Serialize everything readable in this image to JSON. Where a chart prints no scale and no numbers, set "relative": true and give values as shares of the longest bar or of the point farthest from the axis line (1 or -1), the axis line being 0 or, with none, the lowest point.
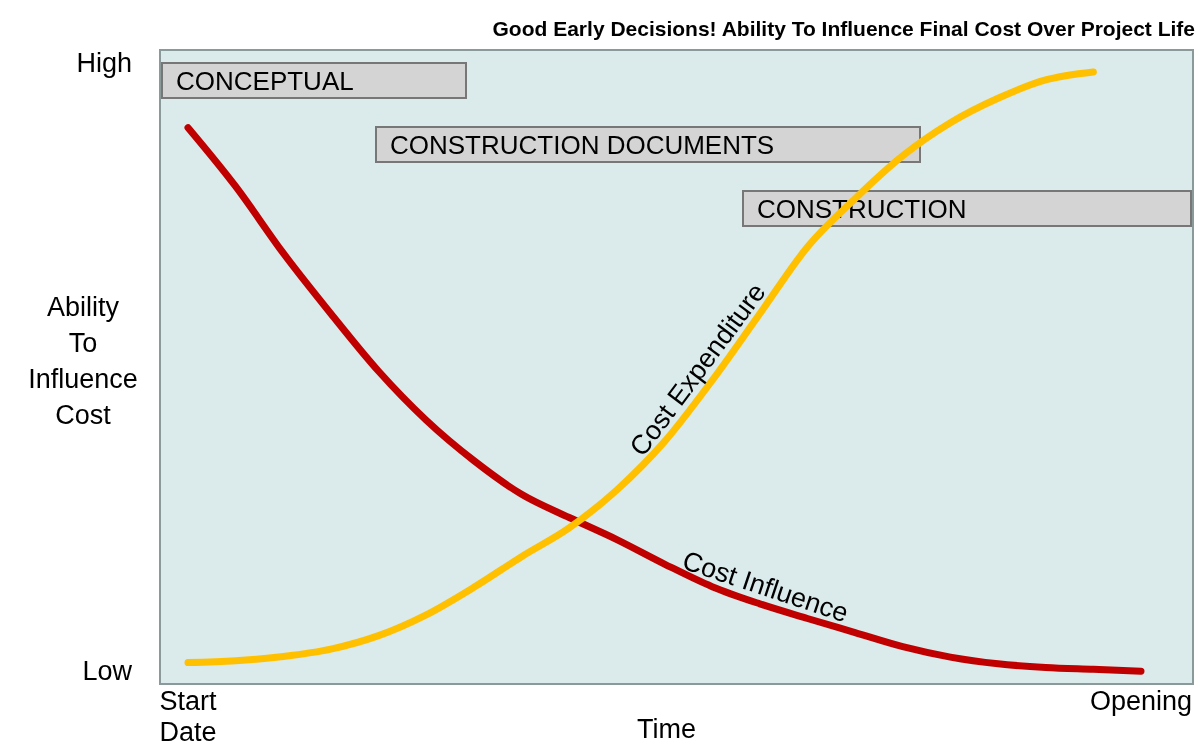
{
  "chart_data": {
    "type": "line",
    "title": "Good Early Decisions!  Ability To Influence Final Cost Over Project Life",
    "xlabel": "Time",
    "ylabel": "Ability To Influence Cost",
    "relative": true,
    "categories": [
      "Start Date",
      null,
      null,
      null,
      null,
      null,
      null,
      null,
      null,
      null,
      null,
      null,
      null,
      null,
      null,
      null,
      null,
      null,
      null,
      null,
      "Opening"
    ],
    "annotations": [
      "High",
      "Low",
      "CONCEPTUAL",
      "CONSTRUCTION DOCUMENTS",
      "CONSTRUCTION"
    ],
    "grid": false,
    "legend": false,
    "marker": "none",
    "line_style": "solid",
    "series": [
      {
        "name": "Cost Influence",
        "color": "#c00000",
        "values": [
          0.909,
          0.813,
          0.704,
          0.605,
          0.511,
          0.431,
          0.365,
          0.31,
          0.272,
          0.236,
          0.196,
          0.159,
          0.131,
          0.107,
          0.084,
          0.061,
          0.044,
          0.033,
          0.027,
          0.024,
          0.021
        ]
      },
      {
        "name": "Cost Expenditure",
        "color": "#ffc000",
        "values": [
          0.035,
          0.038,
          0.045,
          0.057,
          0.079,
          0.113,
          0.158,
          0.208,
          0.255,
          0.317,
          0.396,
          0.496,
          0.605,
          0.714,
          0.793,
          0.863,
          0.917,
          0.957,
          0.987,
          1.0,
          null
        ]
      }
    ]
  }
}
